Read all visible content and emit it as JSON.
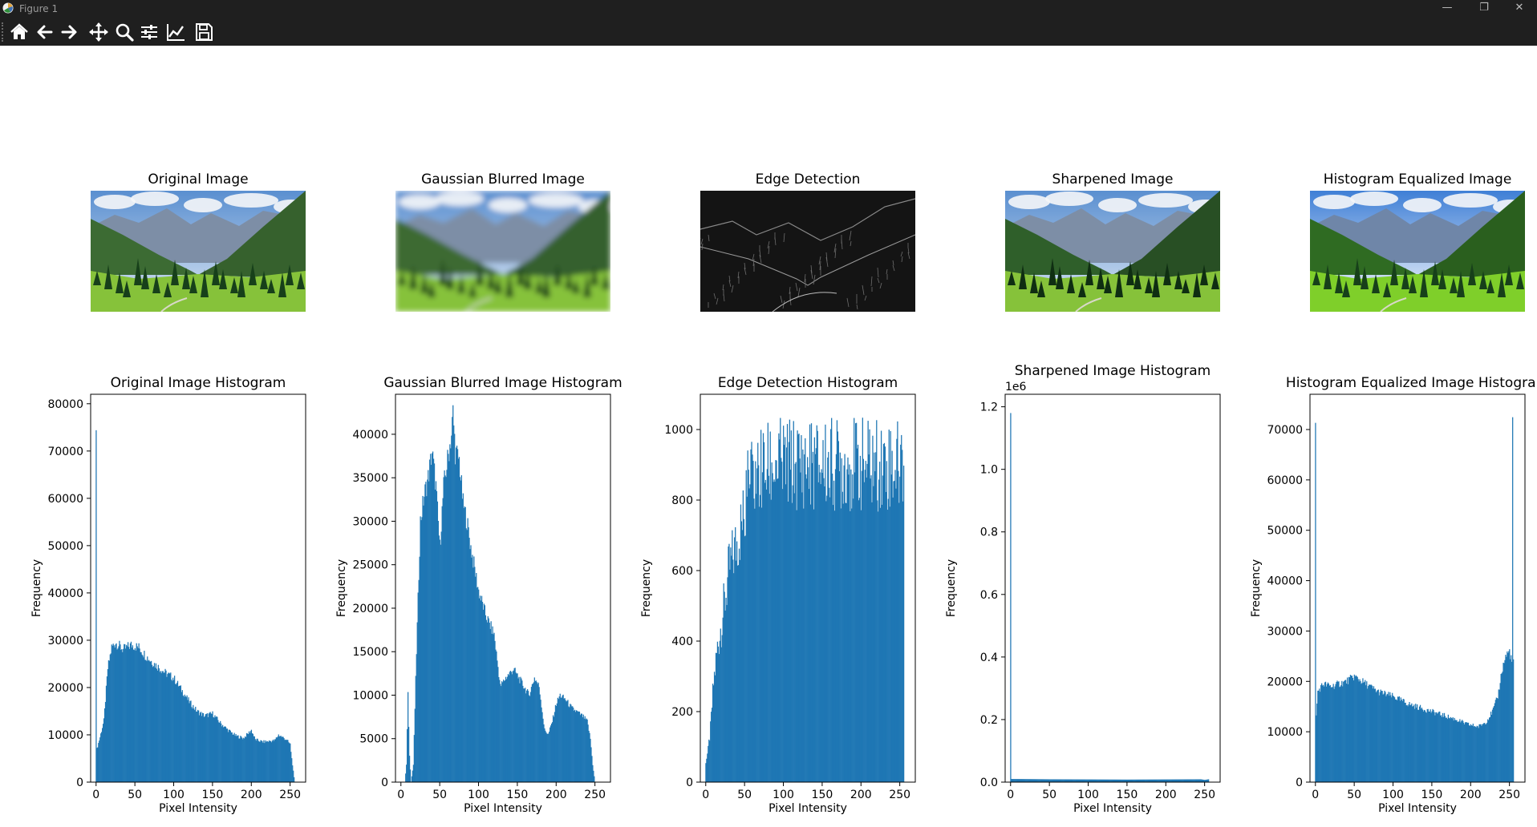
{
  "window": {
    "title": "Figure 1",
    "buttons": {
      "minimize": "—",
      "maximize": "❐",
      "close": "✕"
    }
  },
  "toolbar": {
    "items": [
      {
        "name": "home-button",
        "icon": "home-icon"
      },
      {
        "name": "back-button",
        "icon": "arrow-left-icon"
      },
      {
        "name": "forward-button",
        "icon": "arrow-right-icon"
      },
      {
        "name": "pan-button",
        "icon": "move-icon"
      },
      {
        "name": "zoom-button",
        "icon": "magnifier-icon"
      },
      {
        "name": "subplots-button",
        "icon": "sliders-icon"
      },
      {
        "name": "customize-button",
        "icon": "line-chart-icon"
      },
      {
        "name": "save-button",
        "icon": "floppy-disk-icon"
      }
    ]
  },
  "images": [
    {
      "title": "Original Image",
      "kind": "original"
    },
    {
      "title": "Gaussian Blurred Image",
      "kind": "blurred"
    },
    {
      "title": "Edge Detection",
      "kind": "edges"
    },
    {
      "title": "Sharpened Image",
      "kind": "sharpened"
    },
    {
      "title": "Histogram Equalized Image",
      "kind": "equalized"
    }
  ],
  "chart_data": [
    {
      "type": "bar",
      "title": "Original Image Histogram",
      "xlabel": "Pixel Intensity",
      "ylabel": "Frequency",
      "xlim": [
        -7,
        270
      ],
      "ylim": [
        0,
        82000
      ],
      "xticks": [
        0,
        50,
        100,
        150,
        200,
        250
      ],
      "yticks": [
        0,
        10000,
        20000,
        30000,
        40000,
        50000,
        60000,
        70000,
        80000
      ],
      "ytick_labels": [
        "0",
        "10000",
        "20000",
        "30000",
        "40000",
        "50000",
        "60000",
        "70000",
        "80000"
      ],
      "offset_label": "",
      "color": "#1f77b4",
      "bins": 256,
      "profile": [
        [
          0,
          77500
        ],
        [
          1,
          7000
        ],
        [
          5,
          9500
        ],
        [
          10,
          13000
        ],
        [
          15,
          24000
        ],
        [
          20,
          28500
        ],
        [
          25,
          29500
        ],
        [
          35,
          28000
        ],
        [
          45,
          29000
        ],
        [
          55,
          28500
        ],
        [
          65,
          26500
        ],
        [
          75,
          25000
        ],
        [
          90,
          23000
        ],
        [
          100,
          22000
        ],
        [
          110,
          19500
        ],
        [
          120,
          17000
        ],
        [
          130,
          15000
        ],
        [
          140,
          14000
        ],
        [
          150,
          14500
        ],
        [
          160,
          12500
        ],
        [
          170,
          11000
        ],
        [
          180,
          9800
        ],
        [
          190,
          9300
        ],
        [
          200,
          11000
        ],
        [
          205,
          9000
        ],
        [
          215,
          8500
        ],
        [
          230,
          8800
        ],
        [
          235,
          10000
        ],
        [
          245,
          9000
        ],
        [
          250,
          8000
        ],
        [
          252,
          5000
        ],
        [
          255,
          1000
        ]
      ]
    },
    {
      "type": "bar",
      "title": "Gaussian Blurred Image Histogram",
      "xlabel": "Pixel Intensity",
      "ylabel": "Frequency",
      "xlim": [
        -7,
        270
      ],
      "ylim": [
        0,
        44600
      ],
      "xticks": [
        0,
        50,
        100,
        150,
        200,
        250
      ],
      "yticks": [
        0,
        5000,
        10000,
        15000,
        20000,
        25000,
        30000,
        35000,
        40000
      ],
      "ytick_labels": [
        "0",
        "5000",
        "10000",
        "15000",
        "20000",
        "25000",
        "30000",
        "35000",
        "40000"
      ],
      "offset_label": "",
      "color": "#1f77b4",
      "bins": 256,
      "profile": [
        [
          0,
          0
        ],
        [
          5,
          0
        ],
        [
          7,
          2000
        ],
        [
          9,
          10000
        ],
        [
          11,
          3000
        ],
        [
          13,
          0
        ],
        [
          16,
          2000
        ],
        [
          20,
          15000
        ],
        [
          25,
          30000
        ],
        [
          30,
          33000
        ],
        [
          35,
          35000
        ],
        [
          40,
          38000
        ],
        [
          45,
          34000
        ],
        [
          50,
          27000
        ],
        [
          55,
          34000
        ],
        [
          60,
          37000
        ],
        [
          65,
          40000
        ],
        [
          67,
          42500
        ],
        [
          70,
          38000
        ],
        [
          75,
          37000
        ],
        [
          80,
          32000
        ],
        [
          85,
          30000
        ],
        [
          90,
          27000
        ],
        [
          100,
          22000
        ],
        [
          110,
          19000
        ],
        [
          120,
          17000
        ],
        [
          128,
          11000
        ],
        [
          135,
          12000
        ],
        [
          145,
          13000
        ],
        [
          155,
          11500
        ],
        [
          165,
          10000
        ],
        [
          172,
          12000
        ],
        [
          178,
          11000
        ],
        [
          185,
          6000
        ],
        [
          190,
          5500
        ],
        [
          195,
          7000
        ],
        [
          200,
          9000
        ],
        [
          205,
          10000
        ],
        [
          212,
          9500
        ],
        [
          220,
          8500
        ],
        [
          228,
          8000
        ],
        [
          235,
          7500
        ],
        [
          240,
          7000
        ],
        [
          244,
          5000
        ],
        [
          247,
          2000
        ],
        [
          250,
          0
        ]
      ]
    },
    {
      "type": "bar",
      "title": "Edge Detection Histogram",
      "xlabel": "Pixel Intensity",
      "ylabel": "Frequency",
      "xlim": [
        -7,
        270
      ],
      "ylim": [
        0,
        1100
      ],
      "xticks": [
        0,
        50,
        100,
        150,
        200,
        250
      ],
      "yticks": [
        0,
        200,
        400,
        600,
        800,
        1000
      ],
      "ytick_labels": [
        "0",
        "200",
        "400",
        "600",
        "800",
        "1000"
      ],
      "offset_label": "",
      "color": "#1f77b4",
      "bins": 256,
      "profile": [
        [
          0,
          60
        ],
        [
          3,
          90
        ],
        [
          6,
          150
        ],
        [
          10,
          280
        ],
        [
          15,
          380
        ],
        [
          20,
          450
        ],
        [
          25,
          520
        ],
        [
          30,
          600
        ],
        [
          35,
          640
        ],
        [
          40,
          680
        ],
        [
          45,
          720
        ],
        [
          50,
          760
        ],
        [
          55,
          790
        ],
        [
          60,
          810
        ],
        [
          70,
          830
        ],
        [
          80,
          840
        ],
        [
          90,
          850
        ],
        [
          100,
          850
        ],
        [
          150,
          850
        ],
        [
          200,
          850
        ],
        [
          255,
          850
        ]
      ]
    },
    {
      "type": "bar",
      "title": "Sharpened Image Histogram",
      "xlabel": "Pixel Intensity",
      "ylabel": "Frequency",
      "xlim": [
        -7,
        270
      ],
      "ylim": [
        0,
        1240000
      ],
      "xticks": [
        0,
        50,
        100,
        150,
        200,
        250
      ],
      "yticks": [
        0,
        200000,
        400000,
        600000,
        800000,
        1000000,
        1200000
      ],
      "ytick_labels": [
        "0.0",
        "0.2",
        "0.4",
        "0.6",
        "0.8",
        "1.0",
        "1.2"
      ],
      "offset_label": "1e6",
      "color": "#1f77b4",
      "bins": 256,
      "profile": [
        [
          0,
          1180000
        ],
        [
          1,
          10000
        ],
        [
          50,
          9000
        ],
        [
          100,
          8500
        ],
        [
          150,
          8000
        ],
        [
          200,
          8500
        ],
        [
          245,
          9000
        ],
        [
          250,
          7000
        ],
        [
          255,
          9000
        ]
      ]
    },
    {
      "type": "bar",
      "title": "Histogram Equalized Image Histogram",
      "xlabel": "Pixel Intensity",
      "ylabel": "Frequency",
      "xlim": [
        -7,
        270
      ],
      "ylim": [
        0,
        77000
      ],
      "xticks": [
        0,
        50,
        100,
        150,
        200,
        250
      ],
      "yticks": [
        0,
        10000,
        20000,
        30000,
        40000,
        50000,
        60000,
        70000
      ],
      "ytick_labels": [
        "0",
        "10000",
        "20000",
        "30000",
        "40000",
        "50000",
        "60000",
        "70000"
      ],
      "offset_label": "",
      "color": "#1f77b4",
      "bins": 256,
      "profile": [
        [
          0,
          73500
        ],
        [
          1,
          13000
        ],
        [
          3,
          18000
        ],
        [
          10,
          19500
        ],
        [
          20,
          19000
        ],
        [
          30,
          19500
        ],
        [
          40,
          20000
        ],
        [
          50,
          21000
        ],
        [
          60,
          20000
        ],
        [
          70,
          19000
        ],
        [
          80,
          18000
        ],
        [
          100,
          17000
        ],
        [
          120,
          15500
        ],
        [
          140,
          14500
        ],
        [
          160,
          13500
        ],
        [
          180,
          12500
        ],
        [
          195,
          11500
        ],
        [
          210,
          11000
        ],
        [
          220,
          12000
        ],
        [
          228,
          14000
        ],
        [
          235,
          17000
        ],
        [
          240,
          22000
        ],
        [
          245,
          25000
        ],
        [
          250,
          26000
        ],
        [
          253,
          24000
        ],
        [
          254,
          70000
        ],
        [
          255,
          24000
        ]
      ]
    }
  ]
}
